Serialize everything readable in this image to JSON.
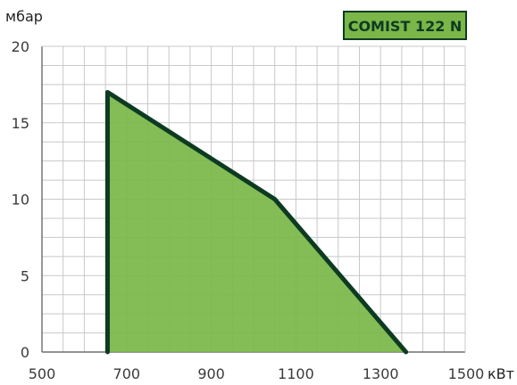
{
  "chart_data": {
    "type": "area",
    "title": "",
    "badge": "COMIST 122 N",
    "xlabel": "кВт",
    "ylabel": "мбар",
    "xlim": [
      500,
      1500
    ],
    "ylim": [
      0,
      20
    ],
    "x_ticks": [
      500,
      700,
      900,
      1100,
      1300,
      1500
    ],
    "y_ticks": [
      0,
      5,
      10,
      15,
      20
    ],
    "grid": true,
    "minor_grid_x": 50,
    "minor_grid_y": 1.25,
    "series": [
      {
        "name": "",
        "points": [
          [
            655,
            0
          ],
          [
            655,
            17
          ],
          [
            1050,
            10
          ],
          [
            1360,
            0
          ]
        ]
      }
    ]
  },
  "colors": {
    "fill": "#7ab648",
    "outline": "#0d3b22",
    "grid": "#c8c8c8",
    "axis": "#555555",
    "badge_bg": "#7ab648",
    "badge_text": "#0d3b22"
  }
}
